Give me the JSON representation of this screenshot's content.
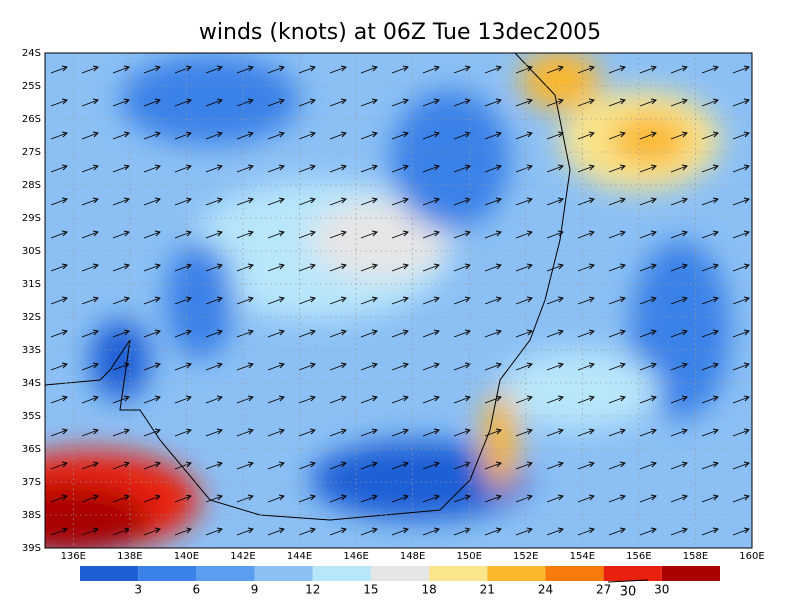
{
  "title": "winds (knots) at 06Z Tue 13dec2005",
  "lat_labels": [
    "24S",
    "25S",
    "26S",
    "27S",
    "28S",
    "29S",
    "30S",
    "31S",
    "32S",
    "33S",
    "34S",
    "35S",
    "36S",
    "37S",
    "38S",
    "39S"
  ],
  "lon_labels": [
    "136E",
    "138E",
    "140E",
    "142E",
    "144E",
    "146E",
    "148E",
    "150E",
    "152E",
    "154E",
    "156E",
    "158E",
    "160E"
  ],
  "colorbar": {
    "colors": [
      "#1f5fd6",
      "#3a82e8",
      "#5b9df0",
      "#8cc0f5",
      "#b8e6fb",
      "#e6e6e6",
      "#fbe58c",
      "#fbb72e",
      "#f77a0a",
      "#e8200e",
      "#a90000"
    ],
    "labels": [
      3,
      6,
      9,
      12,
      15,
      18,
      21,
      24,
      27,
      30
    ]
  },
  "reference_vector": "30"
}
